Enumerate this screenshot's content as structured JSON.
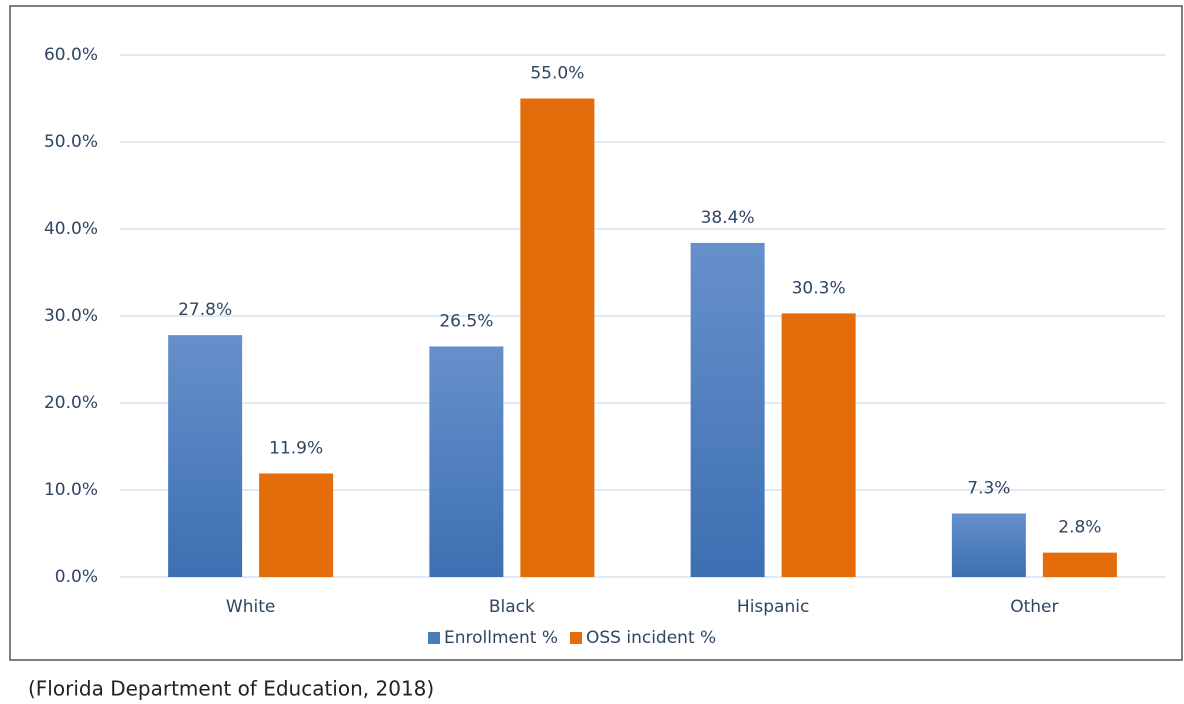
{
  "chart_data": {
    "type": "bar",
    "categories": [
      "White",
      "Black",
      "Hispanic",
      "Other"
    ],
    "series": [
      {
        "name": "Enrollment %",
        "color": "#4a7ebb",
        "values": [
          27.8,
          26.5,
          38.4,
          7.3
        ],
        "value_labels": [
          "27.8%",
          "26.5%",
          "38.4%",
          "7.3%"
        ]
      },
      {
        "name": "OSS incident %",
        "color": "#e46c0a",
        "values": [
          11.9,
          55.0,
          30.3,
          2.8
        ],
        "value_labels": [
          "11.9%",
          "55.0%",
          "30.3%",
          "2.8%"
        ]
      }
    ],
    "ylim": [
      0,
      60
    ],
    "yticks": [
      {
        "value": 0,
        "label": "0.0%"
      },
      {
        "value": 10,
        "label": "10.0%"
      },
      {
        "value": 20,
        "label": "20.0%"
      },
      {
        "value": 30,
        "label": "30.0%"
      },
      {
        "value": 40,
        "label": "40.0%"
      },
      {
        "value": 50,
        "label": "50.0%"
      },
      {
        "value": 60,
        "label": "60.0%"
      }
    ],
    "grid": true,
    "legend": "bottom",
    "source": "(Florida Department of Education, 2018)"
  }
}
